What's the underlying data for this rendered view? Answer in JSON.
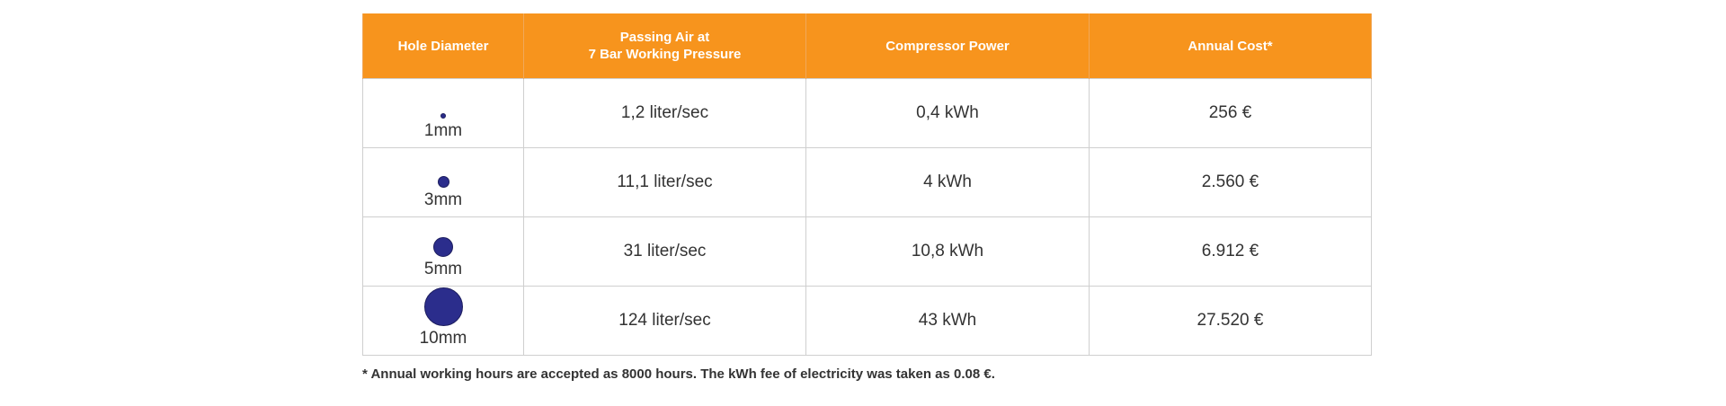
{
  "table": {
    "headers": [
      [
        "Hole Diameter"
      ],
      [
        "Passing Air at",
        "7 Bar Working Pressure"
      ],
      [
        "Compressor Power"
      ],
      [
        "Annual Cost*"
      ]
    ],
    "rows": [
      {
        "hole": "1mm",
        "hole_mm": 1,
        "air": "1,2 liter/sec",
        "power": "0,4 kWh",
        "cost": "256 €"
      },
      {
        "hole": "3mm",
        "hole_mm": 3,
        "air": "11,1 liter/sec",
        "power": "4 kWh",
        "cost": "2.560 €"
      },
      {
        "hole": "5mm",
        "hole_mm": 5,
        "air": "31 liter/sec",
        "power": "10,8 kWh",
        "cost": "6.912 €"
      },
      {
        "hole": "10mm",
        "hole_mm": 10,
        "air": "124 liter/sec",
        "power": "43 kWh",
        "cost": "27.520 €"
      }
    ]
  },
  "footnote": "* Annual working hours are accepted as 8000 hours. The kWh fee of electricity was taken as 0.08 €.",
  "colors": {
    "header_bg": "#f7941d",
    "hole_fill": "#2b2d8c"
  }
}
